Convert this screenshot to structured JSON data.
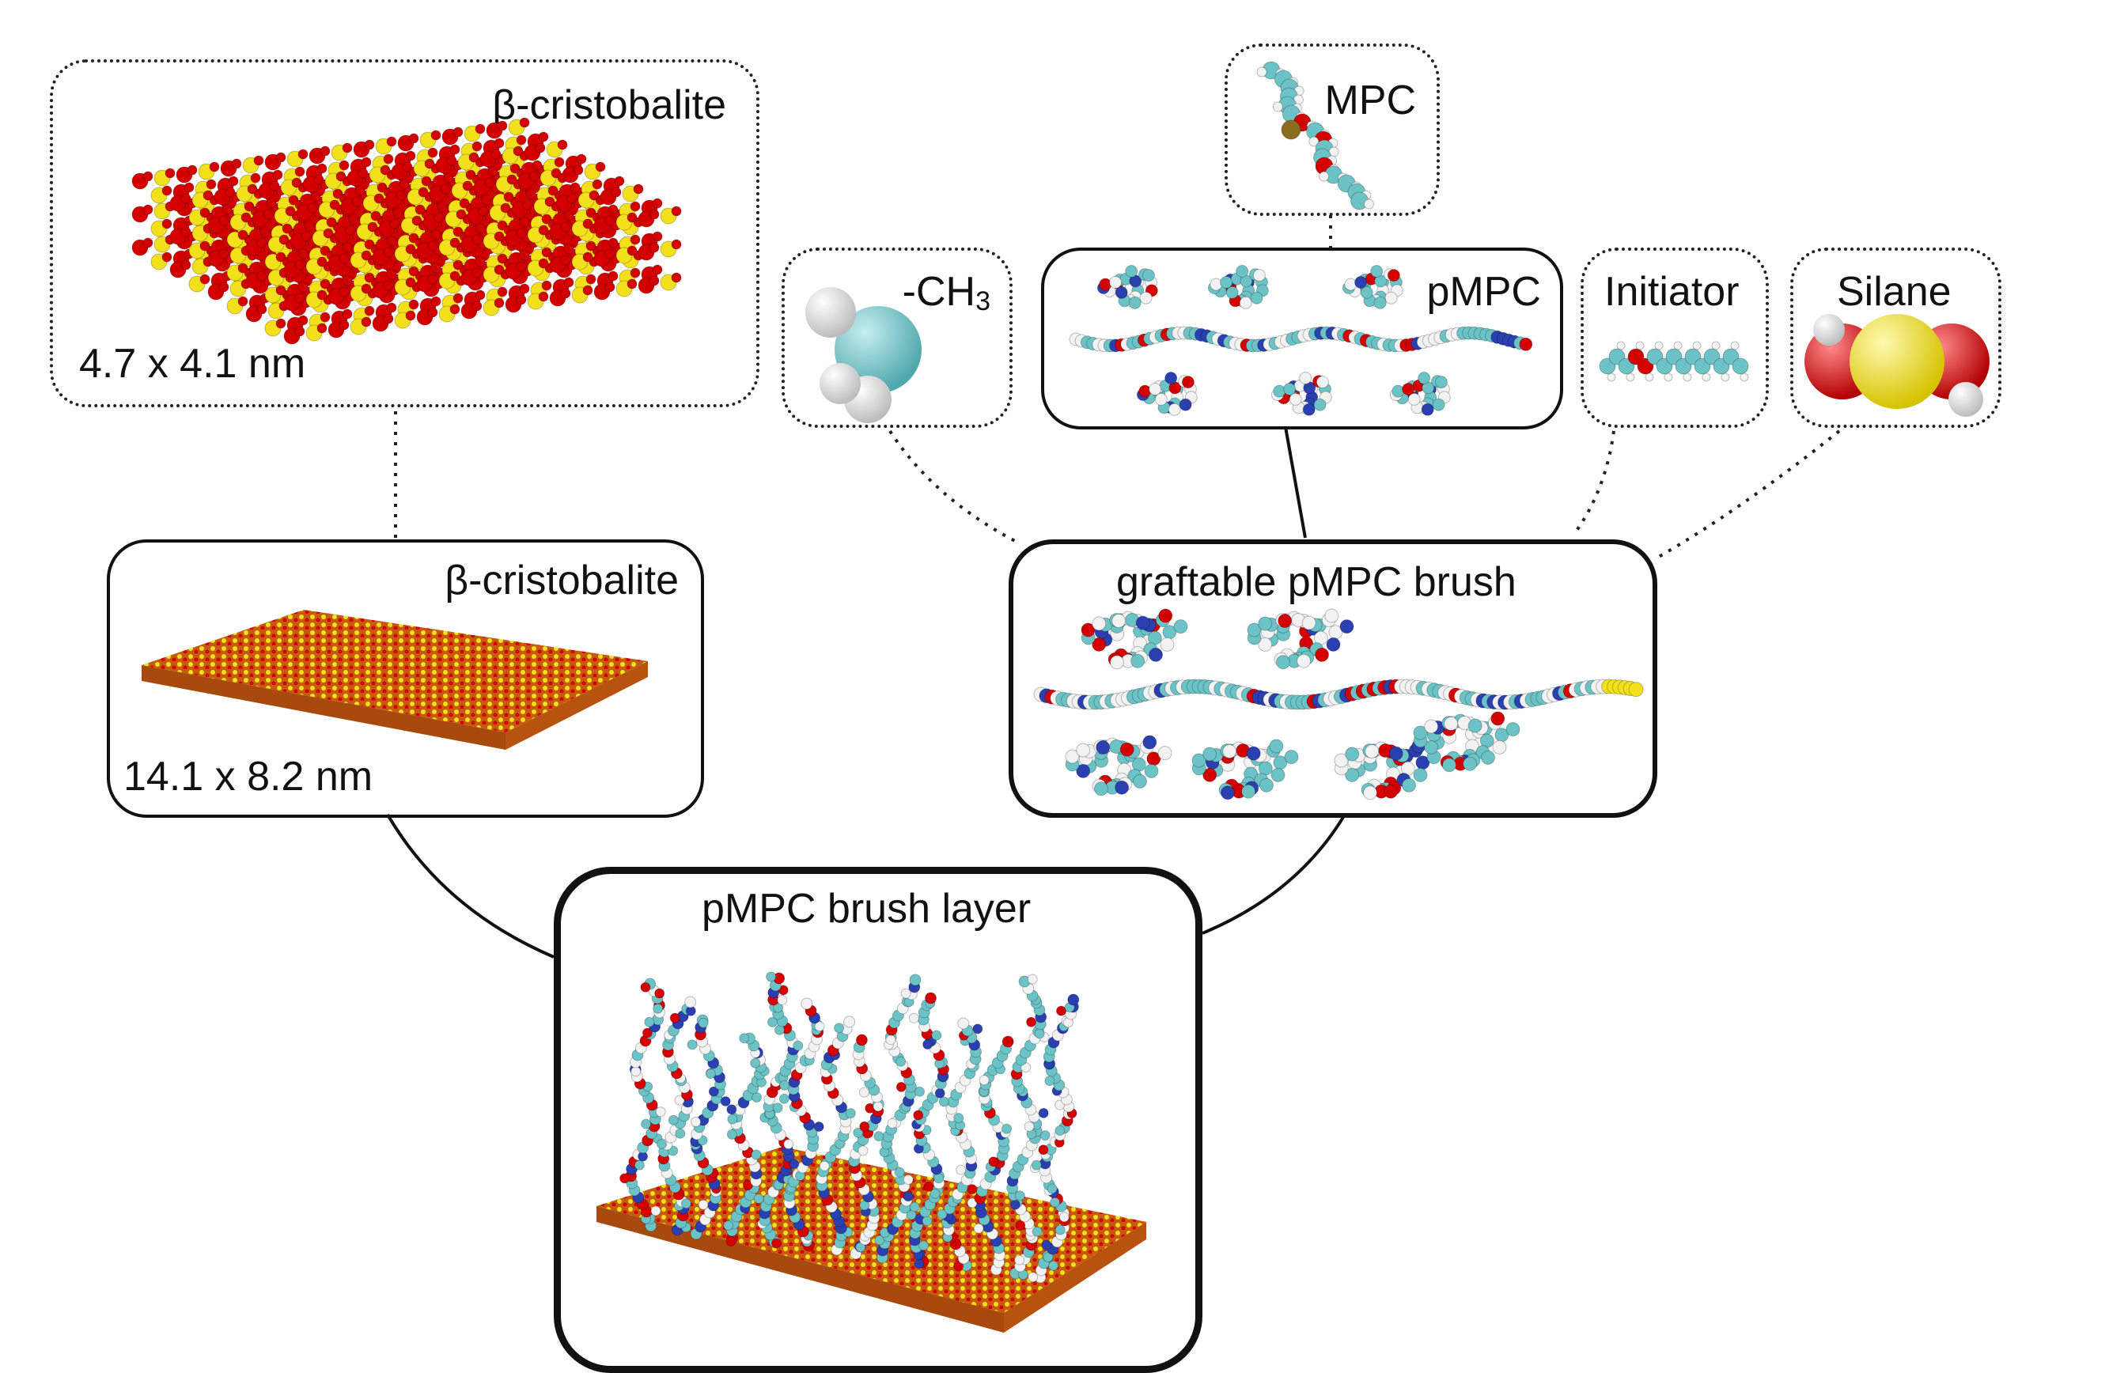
{
  "nodes": {
    "cristobalite_unit": {
      "title": "β-cristobalite",
      "size": "4.7 x 4.1 nm"
    },
    "cristobalite_slab": {
      "title": "β-cristobalite",
      "size": "14.1 x 8.2 nm"
    },
    "mpc": {
      "title": "MPC"
    },
    "ch3": {
      "title_main": "-CH",
      "title_sub": "3"
    },
    "pmpc": {
      "title": "pMPC"
    },
    "initiator": {
      "title": "Initiator"
    },
    "silane": {
      "title": "Silane"
    },
    "graftable": {
      "title": "graftable pMPC brush"
    },
    "brush_layer": {
      "title": "pMPC brush layer"
    }
  },
  "colors": {
    "oxygen": "#d40000",
    "silicon": "#f2e01a",
    "carbon": "#6cc3c6",
    "hydrogen": "#f2f2f2",
    "nitrogen": "#2a3fb0",
    "slab": "#c85a10"
  }
}
